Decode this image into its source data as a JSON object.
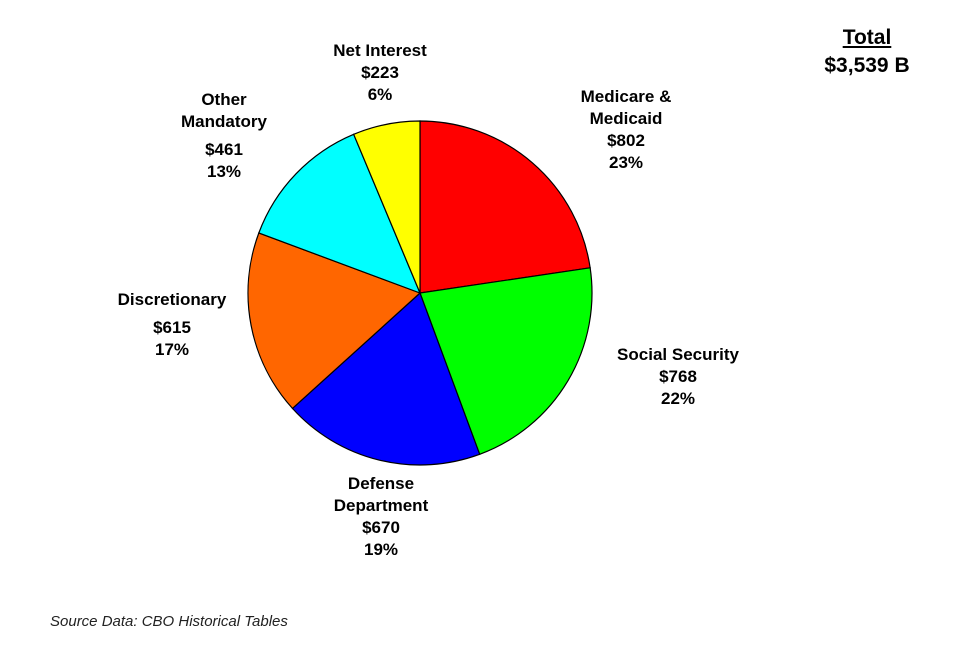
{
  "chart_data": {
    "type": "pie",
    "title": "",
    "total": {
      "label": "Total",
      "value_text": "$3,539 B"
    },
    "slices": [
      {
        "name": "Medicare & Medicaid",
        "name_lines": [
          "Medicare &",
          "Medicaid"
        ],
        "value": 802,
        "value_text": "$802",
        "percent_text": "23%",
        "color": "#ff0000"
      },
      {
        "name": "Social Security",
        "name_lines": [
          "Social Security"
        ],
        "value": 768,
        "value_text": "$768",
        "percent_text": "22%",
        "color": "#00ff00"
      },
      {
        "name": "Defense Department",
        "name_lines": [
          "Defense",
          "Department"
        ],
        "value": 670,
        "value_text": "$670",
        "percent_text": "19%",
        "color": "#0000ff"
      },
      {
        "name": "Discretionary",
        "name_lines": [
          "Discretionary"
        ],
        "value": 615,
        "value_text": "$615",
        "percent_text": "17%",
        "color": "#ff6600"
      },
      {
        "name": "Other Mandatory",
        "name_lines": [
          "Other",
          "Mandatory"
        ],
        "value": 461,
        "value_text": "$461",
        "percent_text": "13%",
        "color": "#00ffff"
      },
      {
        "name": "Net Interest",
        "name_lines": [
          "Net Interest"
        ],
        "value": 223,
        "value_text": "$223",
        "percent_text": "6%",
        "color": "#ffff00"
      }
    ],
    "source": "Source Data: CBO Historical Tables"
  }
}
